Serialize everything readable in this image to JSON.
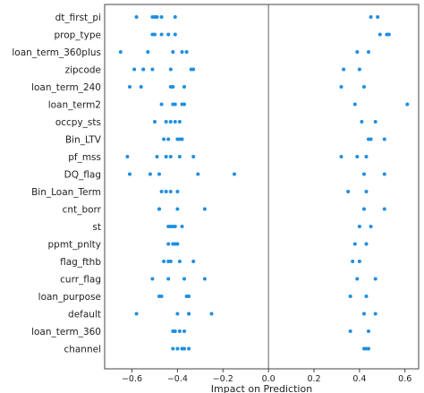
{
  "chart_data": {
    "type": "scatter",
    "title": "",
    "xlabel": "Impact on Prediction",
    "ylabel": "",
    "xlim": [
      -0.72,
      0.66
    ],
    "xticks": [
      -0.6,
      -0.4,
      -0.2,
      0.0,
      0.2,
      0.4,
      0.6
    ],
    "xtick_labels": [
      "−0.6",
      "−0.4",
      "−0.2",
      "0.0",
      "0.2",
      "0.4",
      "0.6"
    ],
    "zero_line": true,
    "grid": false,
    "legend": "none",
    "colors": {
      "point": "#1f8ee0",
      "zero_line": "#666666",
      "frame": "#444444"
    },
    "features": [
      {
        "name": "dt_first_pi",
        "values": [
          -0.58,
          -0.51,
          -0.5,
          -0.49,
          -0.47,
          -0.41,
          0.45,
          0.48
        ]
      },
      {
        "name": "prop_type",
        "values": [
          -0.51,
          -0.5,
          -0.47,
          -0.44,
          -0.41,
          0.49,
          0.52,
          0.53
        ]
      },
      {
        "name": "loan_term_360plus",
        "values": [
          -0.65,
          -0.53,
          -0.42,
          -0.38,
          -0.36,
          0.39,
          0.44
        ]
      },
      {
        "name": "zipcode",
        "values": [
          -0.59,
          -0.55,
          -0.55,
          -0.51,
          -0.43,
          -0.34,
          -0.33,
          0.33,
          0.4
        ]
      },
      {
        "name": "loan_term_240",
        "values": [
          -0.61,
          -0.56,
          -0.43,
          -0.42,
          -0.37,
          0.32,
          0.42
        ]
      },
      {
        "name": "loan_term2",
        "values": [
          -0.47,
          -0.42,
          -0.41,
          -0.38,
          -0.37,
          0.38,
          0.61
        ]
      },
      {
        "name": "occpy_sts",
        "values": [
          -0.5,
          -0.45,
          -0.43,
          -0.41,
          -0.39,
          0.41,
          0.47
        ]
      },
      {
        "name": "Bin_LTV",
        "values": [
          -0.46,
          -0.44,
          -0.4,
          -0.39,
          -0.38,
          0.44,
          0.45,
          0.51
        ]
      },
      {
        "name": "pf_mss",
        "values": [
          -0.62,
          -0.49,
          -0.45,
          -0.43,
          -0.39,
          -0.33,
          0.32,
          0.39,
          0.43
        ]
      },
      {
        "name": "DQ_flag",
        "values": [
          -0.61,
          -0.52,
          -0.48,
          -0.31,
          -0.15,
          0.42,
          0.51
        ]
      },
      {
        "name": "Bin_Loan_Term",
        "values": [
          -0.47,
          -0.45,
          -0.43,
          -0.4,
          0.35,
          0.43
        ]
      },
      {
        "name": "cnt_borr",
        "values": [
          -0.48,
          -0.48,
          -0.4,
          -0.28,
          0.42,
          0.51
        ]
      },
      {
        "name": "st",
        "values": [
          -0.44,
          -0.43,
          -0.42,
          -0.41,
          -0.38,
          0.4,
          0.45
        ]
      },
      {
        "name": "ppmt_pnlty",
        "values": [
          -0.44,
          -0.42,
          -0.41,
          -0.4,
          0.38,
          0.43
        ]
      },
      {
        "name": "flag_fthb",
        "values": [
          -0.46,
          -0.44,
          -0.43,
          -0.39,
          -0.33,
          0.37,
          0.4
        ]
      },
      {
        "name": "curr_flag",
        "values": [
          -0.51,
          -0.44,
          -0.37,
          -0.28,
          0.39,
          0.47
        ]
      },
      {
        "name": "loan_purpose",
        "values": [
          -0.48,
          -0.47,
          -0.36,
          -0.35,
          0.36,
          0.43
        ]
      },
      {
        "name": "default",
        "values": [
          -0.58,
          -0.4,
          -0.35,
          -0.35,
          -0.25,
          0.42,
          0.47
        ]
      },
      {
        "name": "loan_term_360",
        "values": [
          -0.42,
          -0.41,
          -0.39,
          -0.37,
          0.36,
          0.44
        ]
      },
      {
        "name": "channel",
        "values": [
          -0.42,
          -0.4,
          -0.38,
          -0.37,
          -0.35,
          0.42,
          0.43,
          0.44
        ]
      }
    ]
  }
}
